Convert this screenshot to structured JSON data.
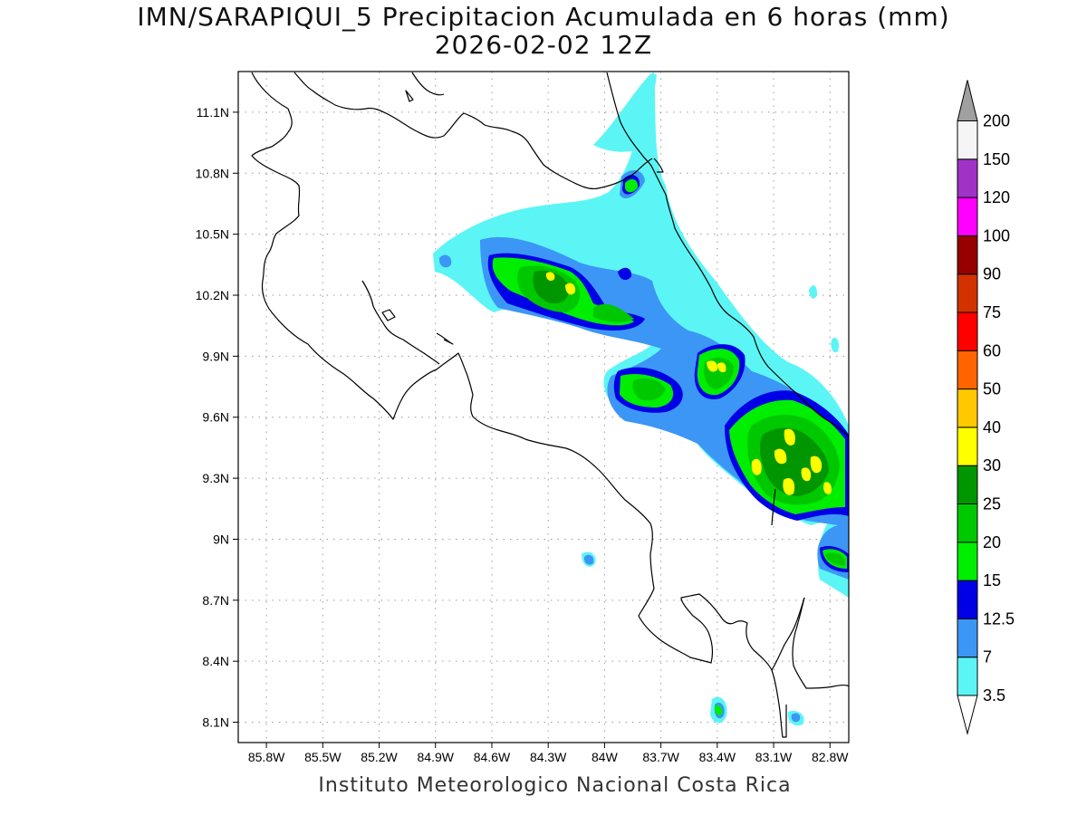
{
  "title": "IMN/SARAPIQUI_5 Precipitacion Acumulada en 6 horas (mm)",
  "subtitle": "2026-02-02 12Z",
  "footer": "Instituto Meteorologico Nacional Costa Rica",
  "map": {
    "lat_range": [
      8.0,
      11.3
    ],
    "lon_range": [
      -85.95,
      -82.7
    ],
    "lat_ticks": [
      {
        "value": 11.1,
        "label": "11.1N"
      },
      {
        "value": 10.8,
        "label": "10.8N"
      },
      {
        "value": 10.5,
        "label": "10.5N"
      },
      {
        "value": 10.2,
        "label": "10.2N"
      },
      {
        "value": 9.9,
        "label": "9.9N"
      },
      {
        "value": 9.6,
        "label": "9.6N"
      },
      {
        "value": 9.3,
        "label": "9.3N"
      },
      {
        "value": 9.0,
        "label": "9N"
      },
      {
        "value": 8.7,
        "label": "8.7N"
      },
      {
        "value": 8.4,
        "label": "8.4N"
      },
      {
        "value": 8.1,
        "label": "8.1N"
      }
    ],
    "lon_ticks": [
      {
        "value": -85.8,
        "label": "85.8W"
      },
      {
        "value": -85.5,
        "label": "85.5W"
      },
      {
        "value": -85.2,
        "label": "85.2W"
      },
      {
        "value": -84.9,
        "label": "84.9W"
      },
      {
        "value": -84.6,
        "label": "84.6W"
      },
      {
        "value": -84.3,
        "label": "84.3W"
      },
      {
        "value": -84.0,
        "label": "84W"
      },
      {
        "value": -83.7,
        "label": "83.7W"
      },
      {
        "value": -83.4,
        "label": "83.4W"
      },
      {
        "value": -83.1,
        "label": "83.1W"
      },
      {
        "value": -82.8,
        "label": "82.8W"
      }
    ],
    "grid": true
  },
  "legend": {
    "orientation": "vertical",
    "levels": [
      {
        "label": "3.5",
        "color": "#5cf5f5"
      },
      {
        "label": "7",
        "color": "#3c96f5"
      },
      {
        "label": "12.5",
        "color": "#0000e6"
      },
      {
        "label": "15",
        "color": "#00ee00"
      },
      {
        "label": "20",
        "color": "#00c800"
      },
      {
        "label": "25",
        "color": "#009600"
      },
      {
        "label": "30",
        "color": "#ffff00"
      },
      {
        "label": "40",
        "color": "#ffc800"
      },
      {
        "label": "50",
        "color": "#ff6400"
      },
      {
        "label": "60",
        "color": "#ff0000"
      },
      {
        "label": "75",
        "color": "#d23200"
      },
      {
        "label": "90",
        "color": "#960000"
      },
      {
        "label": "100",
        "color": "#ff00ff"
      },
      {
        "label": "120",
        "color": "#a032c8"
      },
      {
        "label": "150",
        "color": "#f5f5f5"
      },
      {
        "label": "200",
        "color": "#a0a0a0"
      }
    ]
  }
}
